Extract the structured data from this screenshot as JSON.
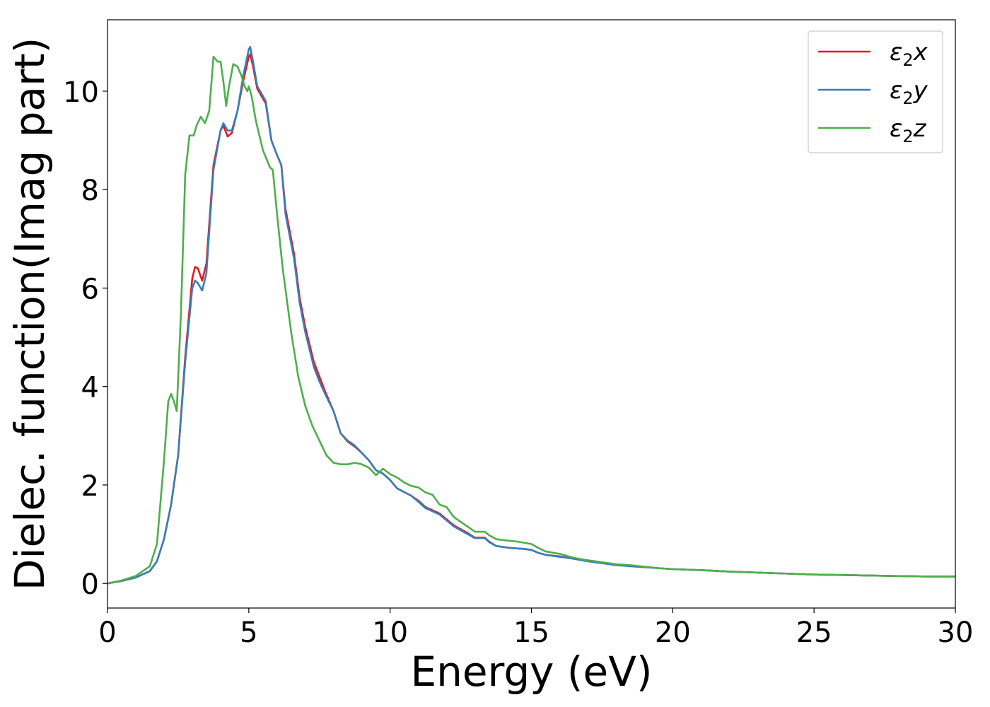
{
  "chart_data": {
    "type": "line",
    "title": "",
    "xlabel": "Energy (eV)",
    "ylabel": "Dielec. function(Imag part)",
    "xlim": [
      0,
      30
    ],
    "ylim": [
      -0.5,
      11.45
    ],
    "xticks": [
      0,
      5,
      10,
      15,
      20,
      25,
      30
    ],
    "yticks": [
      0,
      2,
      4,
      6,
      8,
      10
    ],
    "grid": false,
    "legend_position": "top-right",
    "series": [
      {
        "name": "ε2x",
        "legend_base": "ε",
        "legend_sub": "2",
        "legend_var": "x",
        "color": "#e41a1c",
        "points": [
          [
            0,
            0
          ],
          [
            0.5,
            0.05
          ],
          [
            1,
            0.12
          ],
          [
            1.5,
            0.25
          ],
          [
            1.75,
            0.45
          ],
          [
            2,
            0.9
          ],
          [
            2.25,
            1.6
          ],
          [
            2.5,
            2.6
          ],
          [
            2.75,
            4.6
          ],
          [
            3,
            6.2
          ],
          [
            3.1,
            6.43
          ],
          [
            3.2,
            6.4
          ],
          [
            3.35,
            6.15
          ],
          [
            3.5,
            6.5
          ],
          [
            3.75,
            8.5
          ],
          [
            4,
            9.2
          ],
          [
            4.1,
            9.3
          ],
          [
            4.25,
            9.08
          ],
          [
            4.4,
            9.15
          ],
          [
            4.6,
            9.6
          ],
          [
            4.8,
            10.2
          ],
          [
            5,
            10.7
          ],
          [
            5.05,
            10.75
          ],
          [
            5.15,
            10.5
          ],
          [
            5.3,
            10.05
          ],
          [
            5.6,
            9.75
          ],
          [
            5.8,
            9.0
          ],
          [
            6,
            8.7
          ],
          [
            6.15,
            8.5
          ],
          [
            6.3,
            7.6
          ],
          [
            6.6,
            6.7
          ],
          [
            6.8,
            5.8
          ],
          [
            7,
            5.2
          ],
          [
            7.3,
            4.5
          ],
          [
            7.5,
            4.2
          ],
          [
            7.7,
            3.9
          ],
          [
            8,
            3.5
          ],
          [
            8.25,
            3.05
          ],
          [
            8.5,
            2.88
          ],
          [
            8.75,
            2.78
          ],
          [
            9,
            2.65
          ],
          [
            9.25,
            2.5
          ],
          [
            9.5,
            2.3
          ],
          [
            9.75,
            2.23
          ],
          [
            10,
            2.1
          ],
          [
            10.25,
            1.93
          ],
          [
            10.75,
            1.78
          ],
          [
            11,
            1.68
          ],
          [
            11.25,
            1.55
          ],
          [
            11.75,
            1.42
          ],
          [
            12,
            1.3
          ],
          [
            12.25,
            1.18
          ],
          [
            12.75,
            1.02
          ],
          [
            13,
            0.93
          ],
          [
            13.35,
            0.93
          ],
          [
            13.5,
            0.85
          ],
          [
            13.75,
            0.76
          ],
          [
            14.25,
            0.72
          ],
          [
            14.75,
            0.7
          ],
          [
            15,
            0.68
          ],
          [
            15.25,
            0.62
          ],
          [
            15.5,
            0.58
          ],
          [
            16,
            0.55
          ],
          [
            16.5,
            0.5
          ],
          [
            17,
            0.45
          ],
          [
            17.5,
            0.41
          ],
          [
            18,
            0.38
          ],
          [
            18.5,
            0.35
          ],
          [
            19,
            0.33
          ],
          [
            19.5,
            0.31
          ],
          [
            20,
            0.29
          ],
          [
            21,
            0.27
          ],
          [
            22,
            0.24
          ],
          [
            23,
            0.22
          ],
          [
            24,
            0.2
          ],
          [
            25,
            0.18
          ],
          [
            26,
            0.17
          ],
          [
            27,
            0.16
          ],
          [
            28,
            0.15
          ],
          [
            29,
            0.14
          ],
          [
            30,
            0.14
          ]
        ]
      },
      {
        "name": "ε2y",
        "legend_base": "ε",
        "legend_sub": "2",
        "legend_var": "y",
        "color": "#377eb8",
        "points": [
          [
            0,
            0
          ],
          [
            0.5,
            0.05
          ],
          [
            1,
            0.12
          ],
          [
            1.5,
            0.25
          ],
          [
            1.75,
            0.45
          ],
          [
            2,
            0.9
          ],
          [
            2.25,
            1.6
          ],
          [
            2.5,
            2.6
          ],
          [
            2.75,
            4.5
          ],
          [
            3,
            6.0
          ],
          [
            3.1,
            6.15
          ],
          [
            3.2,
            6.1
          ],
          [
            3.35,
            5.95
          ],
          [
            3.5,
            6.3
          ],
          [
            3.75,
            8.4
          ],
          [
            4,
            9.2
          ],
          [
            4.1,
            9.35
          ],
          [
            4.25,
            9.2
          ],
          [
            4.4,
            9.2
          ],
          [
            4.6,
            9.6
          ],
          [
            4.8,
            10.3
          ],
          [
            5,
            10.85
          ],
          [
            5.05,
            10.9
          ],
          [
            5.15,
            10.6
          ],
          [
            5.3,
            10.1
          ],
          [
            5.6,
            9.8
          ],
          [
            5.8,
            9.0
          ],
          [
            6,
            8.7
          ],
          [
            6.15,
            8.5
          ],
          [
            6.3,
            7.5
          ],
          [
            6.6,
            6.6
          ],
          [
            6.8,
            5.7
          ],
          [
            7,
            5.1
          ],
          [
            7.3,
            4.4
          ],
          [
            7.5,
            4.1
          ],
          [
            7.7,
            3.85
          ],
          [
            8,
            3.5
          ],
          [
            8.25,
            3.05
          ],
          [
            8.5,
            2.9
          ],
          [
            8.75,
            2.8
          ],
          [
            9,
            2.65
          ],
          [
            9.25,
            2.5
          ],
          [
            9.5,
            2.3
          ],
          [
            9.75,
            2.23
          ],
          [
            10,
            2.1
          ],
          [
            10.25,
            1.93
          ],
          [
            10.75,
            1.78
          ],
          [
            11,
            1.66
          ],
          [
            11.25,
            1.53
          ],
          [
            11.75,
            1.4
          ],
          [
            12,
            1.28
          ],
          [
            12.25,
            1.16
          ],
          [
            12.75,
            1.0
          ],
          [
            13,
            0.92
          ],
          [
            13.35,
            0.92
          ],
          [
            13.5,
            0.84
          ],
          [
            13.75,
            0.76
          ],
          [
            14.25,
            0.72
          ],
          [
            14.75,
            0.7
          ],
          [
            15,
            0.68
          ],
          [
            15.25,
            0.62
          ],
          [
            15.5,
            0.58
          ],
          [
            16,
            0.54
          ],
          [
            16.5,
            0.5
          ],
          [
            17,
            0.45
          ],
          [
            17.5,
            0.41
          ],
          [
            18,
            0.37
          ],
          [
            18.5,
            0.35
          ],
          [
            19,
            0.33
          ],
          [
            19.5,
            0.31
          ],
          [
            20,
            0.29
          ],
          [
            21,
            0.27
          ],
          [
            22,
            0.24
          ],
          [
            23,
            0.22
          ],
          [
            24,
            0.2
          ],
          [
            25,
            0.18
          ],
          [
            26,
            0.17
          ],
          [
            27,
            0.16
          ],
          [
            28,
            0.15
          ],
          [
            29,
            0.14
          ],
          [
            30,
            0.14
          ]
        ]
      },
      {
        "name": "ε2z",
        "legend_base": "ε",
        "legend_sub": "2",
        "legend_var": "z",
        "color": "#4daf4a",
        "points": [
          [
            0,
            0
          ],
          [
            0.5,
            0.06
          ],
          [
            1,
            0.15
          ],
          [
            1.5,
            0.35
          ],
          [
            1.75,
            0.8
          ],
          [
            2,
            2.5
          ],
          [
            2.15,
            3.7
          ],
          [
            2.25,
            3.85
          ],
          [
            2.35,
            3.7
          ],
          [
            2.45,
            3.5
          ],
          [
            2.6,
            5.5
          ],
          [
            2.75,
            8.3
          ],
          [
            2.9,
            9.1
          ],
          [
            3.05,
            9.1
          ],
          [
            3.15,
            9.3
          ],
          [
            3.3,
            9.48
          ],
          [
            3.45,
            9.35
          ],
          [
            3.6,
            9.6
          ],
          [
            3.75,
            10.7
          ],
          [
            3.9,
            10.6
          ],
          [
            4,
            10.6
          ],
          [
            4.1,
            10.2
          ],
          [
            4.2,
            9.7
          ],
          [
            4.3,
            10.1
          ],
          [
            4.45,
            10.55
          ],
          [
            4.6,
            10.5
          ],
          [
            4.75,
            10.3
          ],
          [
            4.85,
            10.1
          ],
          [
            4.95,
            10.0
          ],
          [
            5,
            10.1
          ],
          [
            5.1,
            9.9
          ],
          [
            5.25,
            9.4
          ],
          [
            5.5,
            8.8
          ],
          [
            5.75,
            8.45
          ],
          [
            5.85,
            8.4
          ],
          [
            6,
            7.5
          ],
          [
            6.2,
            6.4
          ],
          [
            6.5,
            5.1
          ],
          [
            6.75,
            4.2
          ],
          [
            7,
            3.6
          ],
          [
            7.25,
            3.2
          ],
          [
            7.5,
            2.9
          ],
          [
            7.75,
            2.6
          ],
          [
            8,
            2.45
          ],
          [
            8.25,
            2.42
          ],
          [
            8.5,
            2.42
          ],
          [
            8.75,
            2.45
          ],
          [
            9,
            2.42
          ],
          [
            9.25,
            2.35
          ],
          [
            9.5,
            2.2
          ],
          [
            9.75,
            2.33
          ],
          [
            10,
            2.22
          ],
          [
            10.25,
            2.15
          ],
          [
            10.5,
            2.05
          ],
          [
            10.75,
            1.98
          ],
          [
            11,
            1.95
          ],
          [
            11.25,
            1.85
          ],
          [
            11.5,
            1.8
          ],
          [
            11.75,
            1.6
          ],
          [
            12,
            1.55
          ],
          [
            12.25,
            1.35
          ],
          [
            12.5,
            1.25
          ],
          [
            12.75,
            1.15
          ],
          [
            13,
            1.05
          ],
          [
            13.35,
            1.05
          ],
          [
            13.5,
            0.98
          ],
          [
            13.75,
            0.9
          ],
          [
            14,
            0.88
          ],
          [
            14.5,
            0.85
          ],
          [
            15,
            0.8
          ],
          [
            15.25,
            0.72
          ],
          [
            15.5,
            0.65
          ],
          [
            16,
            0.6
          ],
          [
            16.5,
            0.52
          ],
          [
            17,
            0.47
          ],
          [
            17.5,
            0.43
          ],
          [
            18,
            0.39
          ],
          [
            18.5,
            0.37
          ],
          [
            19,
            0.34
          ],
          [
            19.5,
            0.31
          ],
          [
            20,
            0.29
          ],
          [
            21,
            0.27
          ],
          [
            22,
            0.24
          ],
          [
            23,
            0.22
          ],
          [
            24,
            0.2
          ],
          [
            25,
            0.18
          ],
          [
            26,
            0.17
          ],
          [
            27,
            0.16
          ],
          [
            28,
            0.15
          ],
          [
            29,
            0.14
          ],
          [
            30,
            0.14
          ]
        ]
      }
    ]
  }
}
